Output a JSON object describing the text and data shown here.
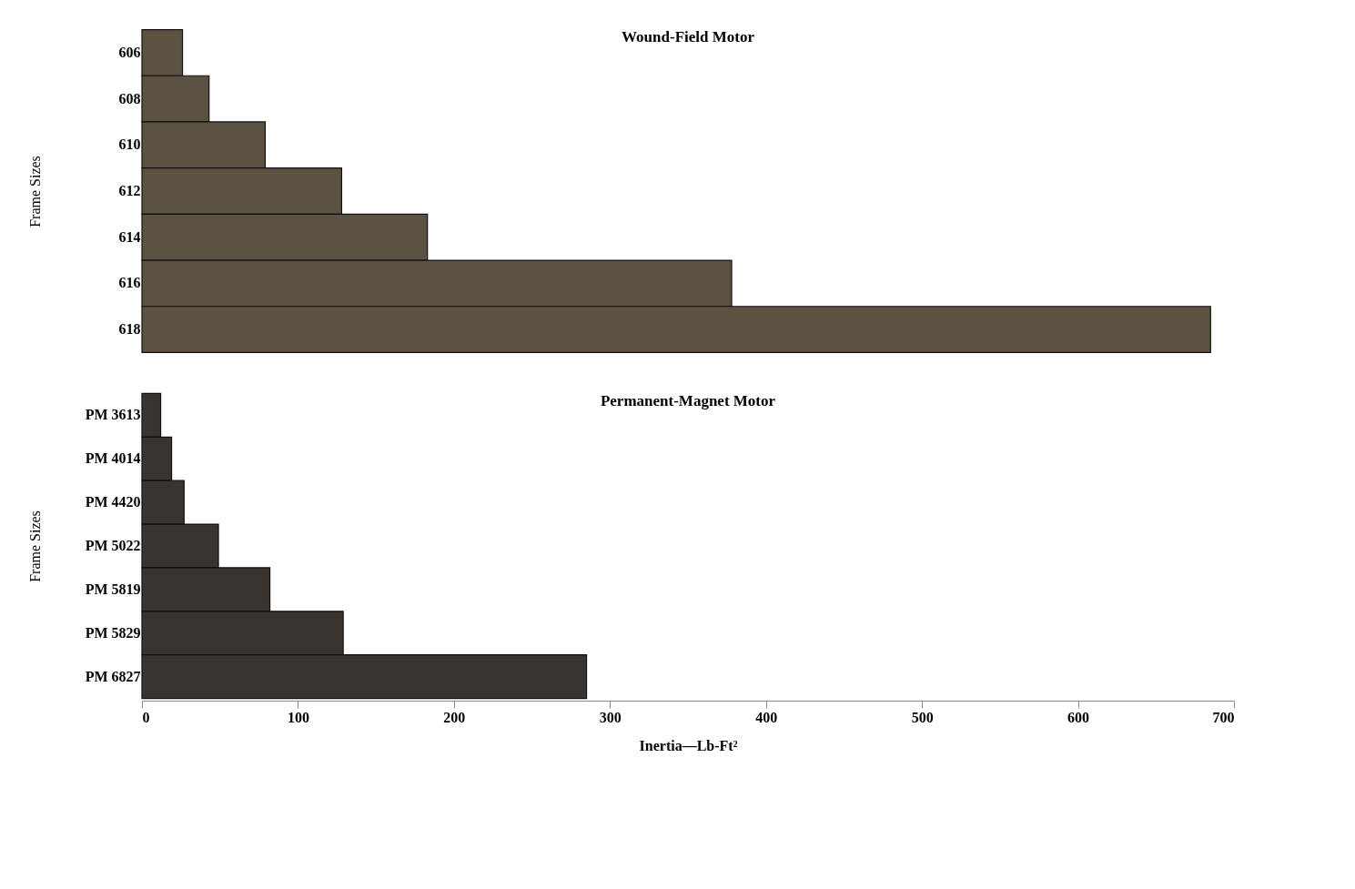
{
  "chart_data": [
    {
      "type": "bar",
      "orientation": "horizontal",
      "title": "Wound-Field Motor",
      "ylabel": "Frame Sizes",
      "categories": [
        "606",
        "608",
        "610",
        "612",
        "614",
        "616",
        "618"
      ],
      "values": [
        26,
        43,
        79,
        128,
        183,
        378,
        685
      ],
      "color": "#5c5244",
      "xlim": [
        0,
        700
      ],
      "xticks": [
        0,
        100,
        200,
        300,
        400,
        500,
        600,
        700
      ],
      "tick_labels": "y",
      "grid": false
    },
    {
      "type": "bar",
      "orientation": "horizontal",
      "title": "Permanent-Magnet Motor",
      "ylabel": "Frame Sizes",
      "xlabel": "Inertia—Lb-Ft²",
      "categories": [
        "PM 3613",
        "PM 4014",
        "PM 4420",
        "PM 5022",
        "PM 5819",
        "PM 5829",
        "PM 6827"
      ],
      "values": [
        12,
        19,
        27,
        49,
        82,
        129,
        285
      ],
      "color": "#3a3430",
      "xlim": [
        0,
        700
      ],
      "xticks": [
        0,
        100,
        200,
        300,
        400,
        500,
        600,
        700
      ],
      "grid": false
    }
  ]
}
